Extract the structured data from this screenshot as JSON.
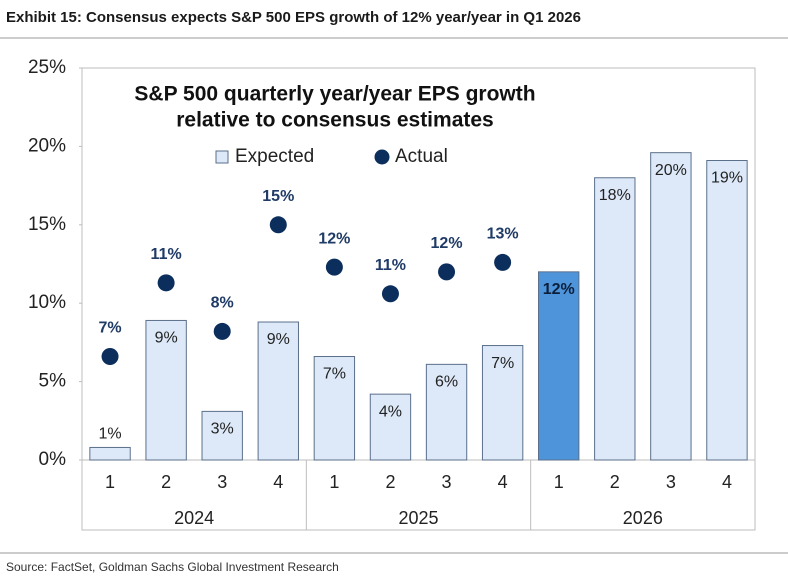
{
  "header": "Exhibit 15: Consensus expects S&P 500 EPS growth of 12% year/year in Q1 2026",
  "source": "Source: FactSet, Goldman Sachs Global Investment Research",
  "chart_data": {
    "type": "bar",
    "title_lines": [
      "S&P 500 quarterly year/year EPS growth",
      "relative to consensus estimates"
    ],
    "categories": [
      "1",
      "2",
      "3",
      "4",
      "1",
      "2",
      "3",
      "4",
      "1",
      "2",
      "3",
      "4"
    ],
    "x_groups": [
      "2024",
      "2025",
      "2026"
    ],
    "ylim": [
      0,
      25
    ],
    "yticks": [
      {
        "value": 0,
        "label": "0%"
      },
      {
        "value": 5,
        "label": "5%"
      },
      {
        "value": 10,
        "label": "10%"
      },
      {
        "value": 15,
        "label": "15%"
      },
      {
        "value": 20,
        "label": "20%"
      },
      {
        "value": 25,
        "label": "25%"
      }
    ],
    "series": [
      {
        "name": "Expected",
        "type": "bar",
        "color": "#dde9f8",
        "colors": [
          "#dde9f8",
          "#dde9f8",
          "#dde9f8",
          "#dde9f8",
          "#dde9f8",
          "#dde9f8",
          "#dde9f8",
          "#dde9f8",
          "#4d94db",
          "#dde9f8",
          "#dde9f8",
          "#dde9f8"
        ],
        "values": [
          0.8,
          8.9,
          3.1,
          8.8,
          6.6,
          4.2,
          6.1,
          7.3,
          12.0,
          18.0,
          19.6,
          19.1
        ],
        "value_labels": [
          "1%",
          "9%",
          "3%",
          "9%",
          "7%",
          "4%",
          "6%",
          "7%",
          "12%",
          "18%",
          "20%",
          "19%"
        ]
      },
      {
        "name": "Actual",
        "type": "scatter",
        "color": "#0c2e5c",
        "values": [
          6.6,
          11.3,
          8.2,
          15.0,
          12.3,
          10.6,
          12.0,
          12.6,
          null,
          null,
          null,
          null
        ],
        "value_labels": [
          "7%",
          "11%",
          "8%",
          "15%",
          "12%",
          "11%",
          "12%",
          "13%",
          null,
          null,
          null,
          null
        ]
      }
    ]
  }
}
